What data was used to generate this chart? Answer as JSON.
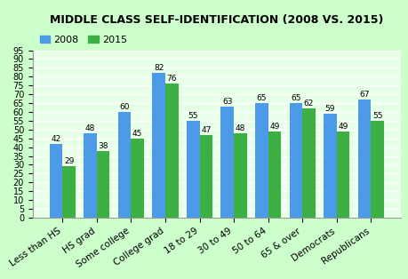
{
  "title": "MIDDLE CLASS SELF-IDENTIFICATION (2008 VS. 2015)",
  "categories": [
    "Less than HS",
    "HS grad",
    "Some college",
    "College grad",
    "18 to 29",
    "30 to 49",
    "50 to 64",
    "65 & over",
    "Democrats",
    "Republicans"
  ],
  "values_2008": [
    42,
    48,
    60,
    82,
    55,
    63,
    65,
    65,
    59,
    67
  ],
  "values_2015": [
    29,
    38,
    45,
    76,
    47,
    48,
    49,
    62,
    49,
    55
  ],
  "color_2008": "#4C9BE8",
  "color_2015": "#3CB043",
  "background_color": "#CCFFCC",
  "plot_background": "#E8FFE8",
  "grid_color": "#FFFFFF",
  "ylim": [
    0,
    95
  ],
  "yticks": [
    0,
    5,
    10,
    15,
    20,
    25,
    30,
    35,
    40,
    45,
    50,
    55,
    60,
    65,
    70,
    75,
    80,
    85,
    90,
    95
  ],
  "bar_width": 0.38,
  "label_2008": "2008",
  "label_2015": "2015",
  "value_fontsize": 6.5,
  "xlabel_fontsize": 7.5,
  "ylabel_fontsize": 7,
  "title_fontsize": 9
}
